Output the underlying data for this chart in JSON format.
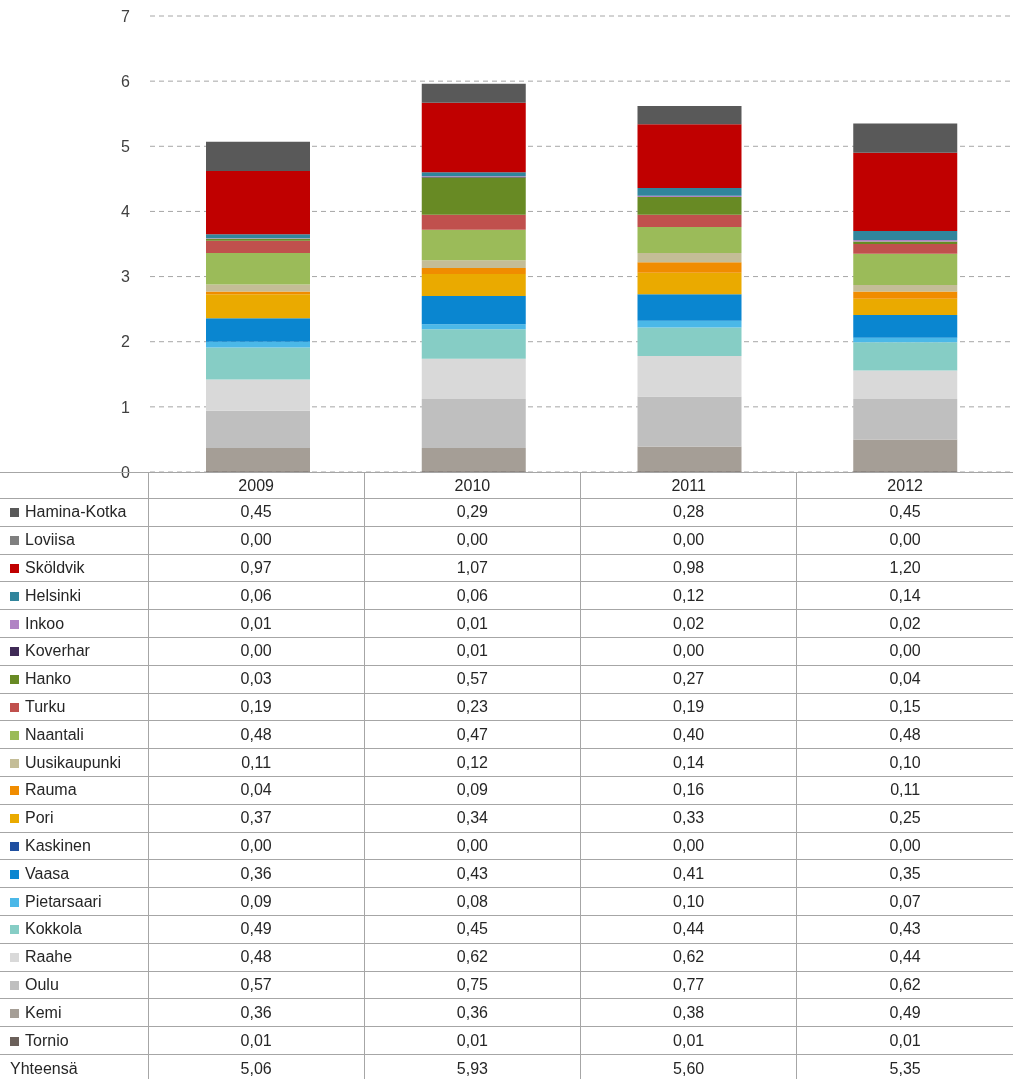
{
  "chart_data": {
    "type": "bar",
    "stacked": true,
    "categories": [
      "2009",
      "2010",
      "2011",
      "2012"
    ],
    "ylim": [
      0,
      7
    ],
    "yticks": [
      0,
      1,
      2,
      3,
      4,
      5,
      6,
      7
    ],
    "grid": "y",
    "legend": "bottom",
    "series": [
      {
        "name": "Tornio",
        "color": "#6b605a",
        "values": [
          0.01,
          0.01,
          0.01,
          0.01
        ],
        "value_labels": [
          "0,01",
          "0,01",
          "0,01",
          "0,01"
        ]
      },
      {
        "name": "Kemi",
        "color": "#a59e96",
        "values": [
          0.36,
          0.36,
          0.38,
          0.49
        ],
        "value_labels": [
          "0,36",
          "0,36",
          "0,38",
          "0,49"
        ]
      },
      {
        "name": "Oulu",
        "color": "#bfbfbf",
        "values": [
          0.57,
          0.75,
          0.77,
          0.62
        ],
        "value_labels": [
          "0,57",
          "0,75",
          "0,77",
          "0,62"
        ]
      },
      {
        "name": "Raahe",
        "color": "#d9d9d9",
        "values": [
          0.48,
          0.62,
          0.62,
          0.44
        ],
        "value_labels": [
          "0,48",
          "0,62",
          "0,62",
          "0,44"
        ]
      },
      {
        "name": "Kokkola",
        "color": "#86cdc5",
        "values": [
          0.49,
          0.45,
          0.44,
          0.43
        ],
        "value_labels": [
          "0,49",
          "0,45",
          "0,44",
          "0,43"
        ]
      },
      {
        "name": "Pietarsaari",
        "color": "#4bb8e8",
        "values": [
          0.09,
          0.08,
          0.1,
          0.07
        ],
        "value_labels": [
          "0,09",
          "0,08",
          "0,10",
          "0,07"
        ]
      },
      {
        "name": "Vaasa",
        "color": "#0a86d0",
        "values": [
          0.36,
          0.43,
          0.41,
          0.35
        ],
        "value_labels": [
          "0,36",
          "0,43",
          "0,41",
          "0,35"
        ]
      },
      {
        "name": "Kaskinen",
        "color": "#1f4fa0",
        "values": [
          0,
          0,
          0,
          0
        ],
        "value_labels": [
          "0,00",
          "0,00",
          "0,00",
          "0,00"
        ]
      },
      {
        "name": "Pori",
        "color": "#eaaa00",
        "values": [
          0.37,
          0.34,
          0.33,
          0.25
        ],
        "value_labels": [
          "0,37",
          "0,34",
          "0,33",
          "0,25"
        ]
      },
      {
        "name": "Rauma",
        "color": "#f08c00",
        "values": [
          0.04,
          0.09,
          0.16,
          0.11
        ],
        "value_labels": [
          "0,04",
          "0,09",
          "0,16",
          "0,11"
        ]
      },
      {
        "name": "Uusikaupunki",
        "color": "#c4bd97",
        "values": [
          0.11,
          0.12,
          0.14,
          0.1
        ],
        "value_labels": [
          "0,11",
          "0,12",
          "0,14",
          "0,10"
        ]
      },
      {
        "name": "Naantali",
        "color": "#9bbb59",
        "values": [
          0.48,
          0.47,
          0.4,
          0.48
        ],
        "value_labels": [
          "0,48",
          "0,47",
          "0,40",
          "0,48"
        ]
      },
      {
        "name": "Turku",
        "color": "#c0504d",
        "values": [
          0.19,
          0.23,
          0.19,
          0.15
        ],
        "value_labels": [
          "0,19",
          "0,23",
          "0,19",
          "0,15"
        ]
      },
      {
        "name": "Hanko",
        "color": "#688a24",
        "values": [
          0.03,
          0.57,
          0.27,
          0.04
        ],
        "value_labels": [
          "0,03",
          "0,57",
          "0,27",
          "0,04"
        ]
      },
      {
        "name": "Koverhar",
        "color": "#3f2a56",
        "values": [
          0,
          0.01,
          0,
          0
        ],
        "value_labels": [
          "0,00",
          "0,01",
          "0,00",
          "0,00"
        ]
      },
      {
        "name": "Inkoo",
        "color": "#b083c4",
        "values": [
          0.01,
          0.01,
          0.02,
          0.02
        ],
        "value_labels": [
          "0,01",
          "0,01",
          "0,02",
          "0,02"
        ]
      },
      {
        "name": "Helsinki",
        "color": "#31859c",
        "values": [
          0.06,
          0.06,
          0.12,
          0.14
        ],
        "value_labels": [
          "0,06",
          "0,06",
          "0,12",
          "0,14"
        ]
      },
      {
        "name": "Sköldvik",
        "color": "#c00000",
        "values": [
          0.97,
          1.07,
          0.98,
          1.2
        ],
        "value_labels": [
          "0,97",
          "1,07",
          "0,98",
          "1,20"
        ]
      },
      {
        "name": "Loviisa",
        "color": "#7f7f7f",
        "values": [
          0,
          0,
          0,
          0
        ],
        "value_labels": [
          "0,00",
          "0,00",
          "0,00",
          "0,00"
        ]
      },
      {
        "name": "Hamina-Kotka",
        "color": "#595959",
        "values": [
          0.45,
          0.29,
          0.28,
          0.45
        ],
        "value_labels": [
          "0,45",
          "0,29",
          "0,28",
          "0,45"
        ]
      }
    ],
    "annotations": [
      "Yhteensä",
      "5,06",
      "5,93",
      "5,60",
      "5,35"
    ]
  }
}
